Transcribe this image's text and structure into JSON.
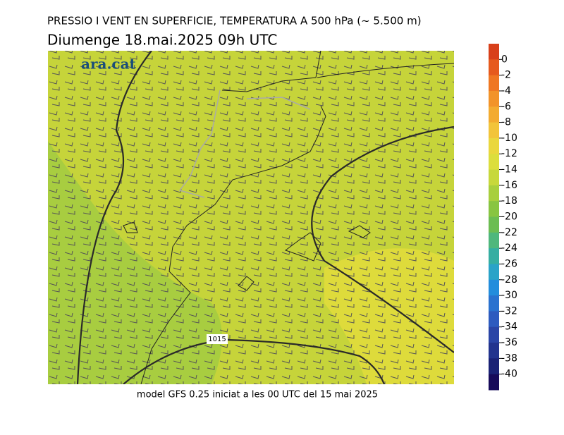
{
  "header": {
    "title": "PRESSIO I VENT EN SUPERFICIE, TEMPERATURA A 500 hPa (~ 5.500 m)",
    "subtitle": "Diumenge  18.mai.2025 09h UTC"
  },
  "map": {
    "logo": "ara.cat",
    "isobar_label": "1015"
  },
  "footer": "model GFS 0.25 iniciat a les 00 UTC del 15 mai 2025",
  "colorbar": {
    "range": [
      2,
      -42
    ],
    "ticks": [
      0,
      -2,
      -4,
      -6,
      -8,
      -10,
      -12,
      -14,
      -16,
      -18,
      -20,
      -22,
      -24,
      -26,
      -28,
      -30,
      -32,
      -34,
      -36,
      -38,
      -40
    ],
    "colors": [
      "#d8401a",
      "#e65a1d",
      "#ef7722",
      "#f29329",
      "#f3ab30",
      "#f2c43a",
      "#ead73d",
      "#dcde3d",
      "#c7d83b",
      "#a8cf3d",
      "#88c541",
      "#6cbd52",
      "#4fb77c",
      "#35aea2",
      "#2aa3c8",
      "#238ddc",
      "#2a72cf",
      "#2d5bbf",
      "#2a45a6",
      "#22348e",
      "#1a2275",
      "#170b5a"
    ]
  }
}
